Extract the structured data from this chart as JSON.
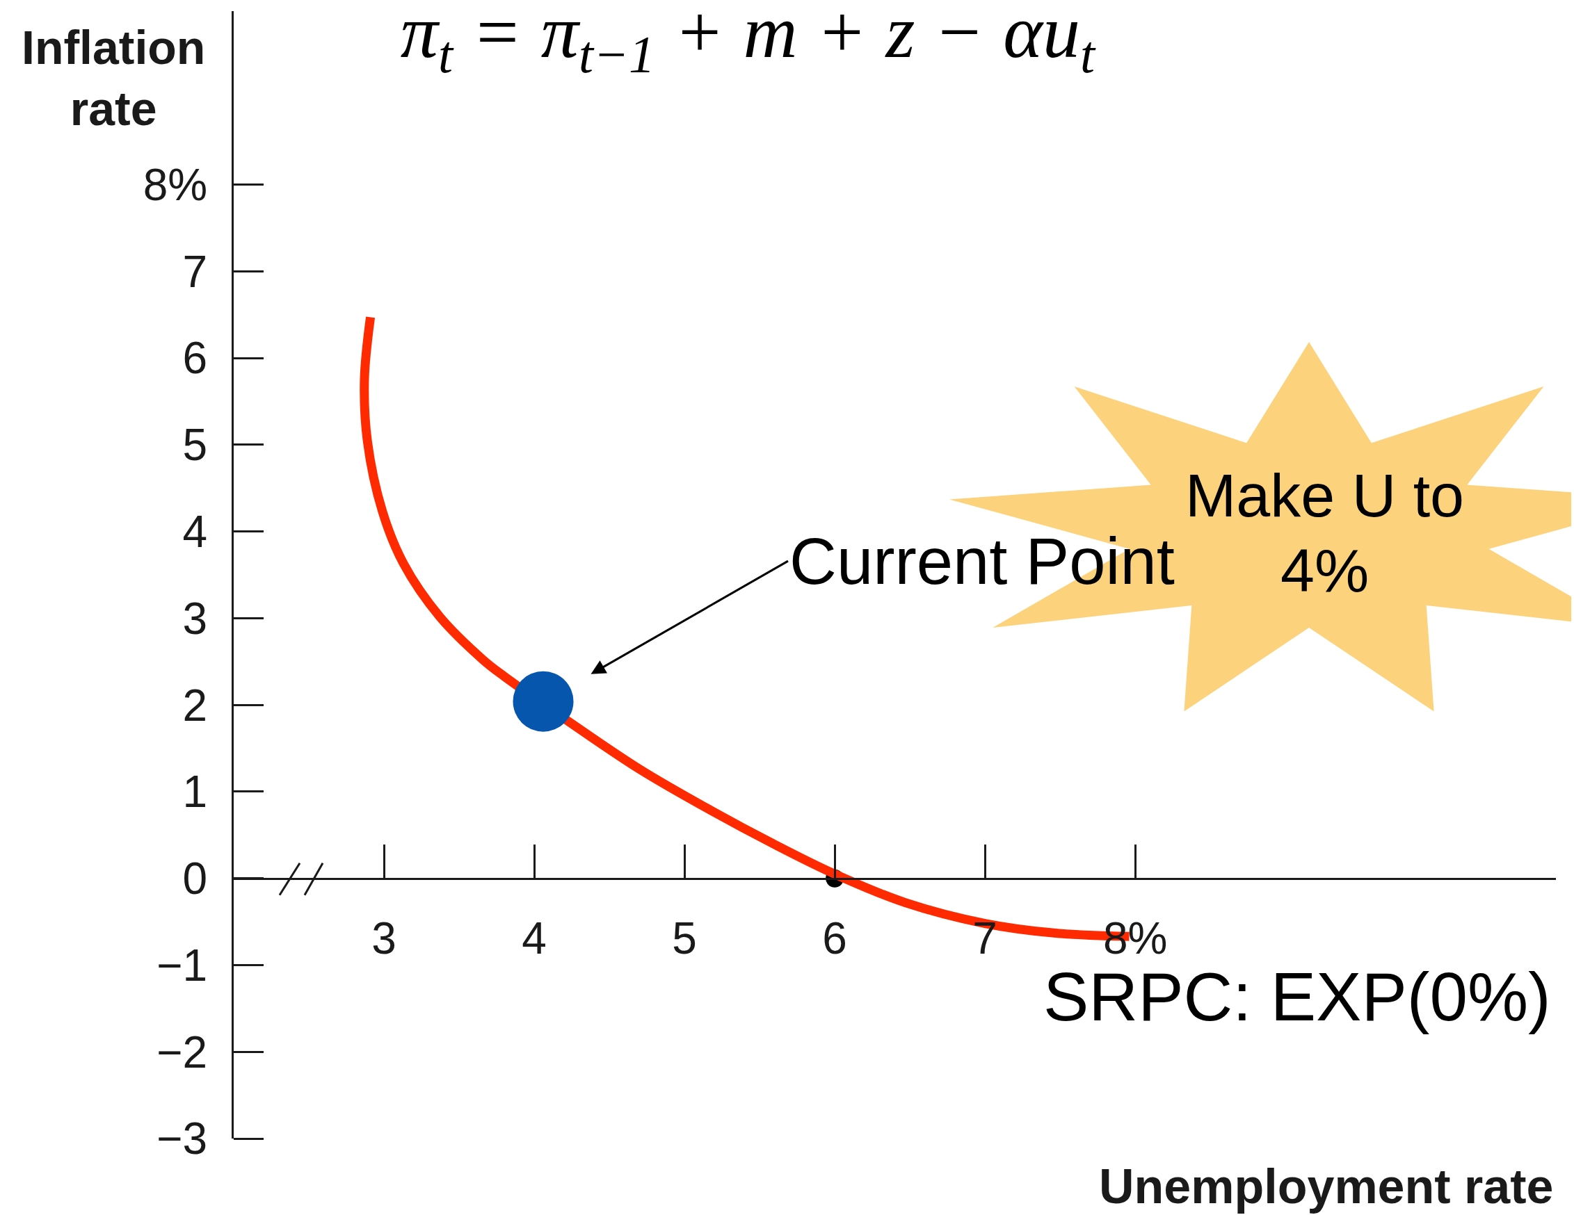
{
  "chart_data": {
    "type": "line",
    "title": "π$_{t}$ = π$_{t−1}$ + m + z − αu$_{t}$",
    "xlabel": "Unemployment rate",
    "ylabel": "Inflation rate",
    "xlim": [
      2,
      10.8
    ],
    "xticks": [
      3,
      4,
      5,
      6,
      7,
      {
        "value": 8,
        "label": "8%"
      }
    ],
    "ylim": [
      -3,
      10
    ],
    "yticks": [
      {
        "value": -3,
        "label": "−3"
      },
      {
        "value": -2,
        "label": "−2"
      },
      {
        "value": -1,
        "label": "−1"
      },
      0,
      1,
      2,
      3,
      4,
      5,
      6,
      7,
      {
        "value": 8,
        "label": "8%"
      }
    ],
    "series": [
      {
        "type": "scatter",
        "color": "#000000",
        "x": [
          6
        ],
        "values": [
          0
        ],
        "marker": "circle"
      },
      {
        "name": "SRPC: EXP(0%)",
        "color": "#ff2a00",
        "x": [
          2.91,
          2.87,
          2.89,
          2.99,
          3.13,
          3.37,
          3.66,
          3.8,
          4.27,
          4.71,
          5.18,
          5.59,
          6.0,
          6.47,
          7.0,
          7.46,
          7.96
        ],
        "values": [
          6.47,
          5.75,
          5.04,
          4.23,
          3.63,
          3.02,
          2.52,
          2.33,
          1.76,
          1.25,
          0.78,
          0.4,
          0.05,
          -0.28,
          -0.52,
          -0.63,
          -0.67
        ]
      },
      {
        "type": "scatter",
        "color": "#0656ad",
        "x": [
          4.06
        ],
        "values": [
          2.04
        ],
        "marker": "circle"
      }
    ],
    "annotations": [
      {
        "text": "Current Point",
        "x": 4.06,
        "y": 2.04
      },
      "Make U to 4%"
    ]
  }
}
